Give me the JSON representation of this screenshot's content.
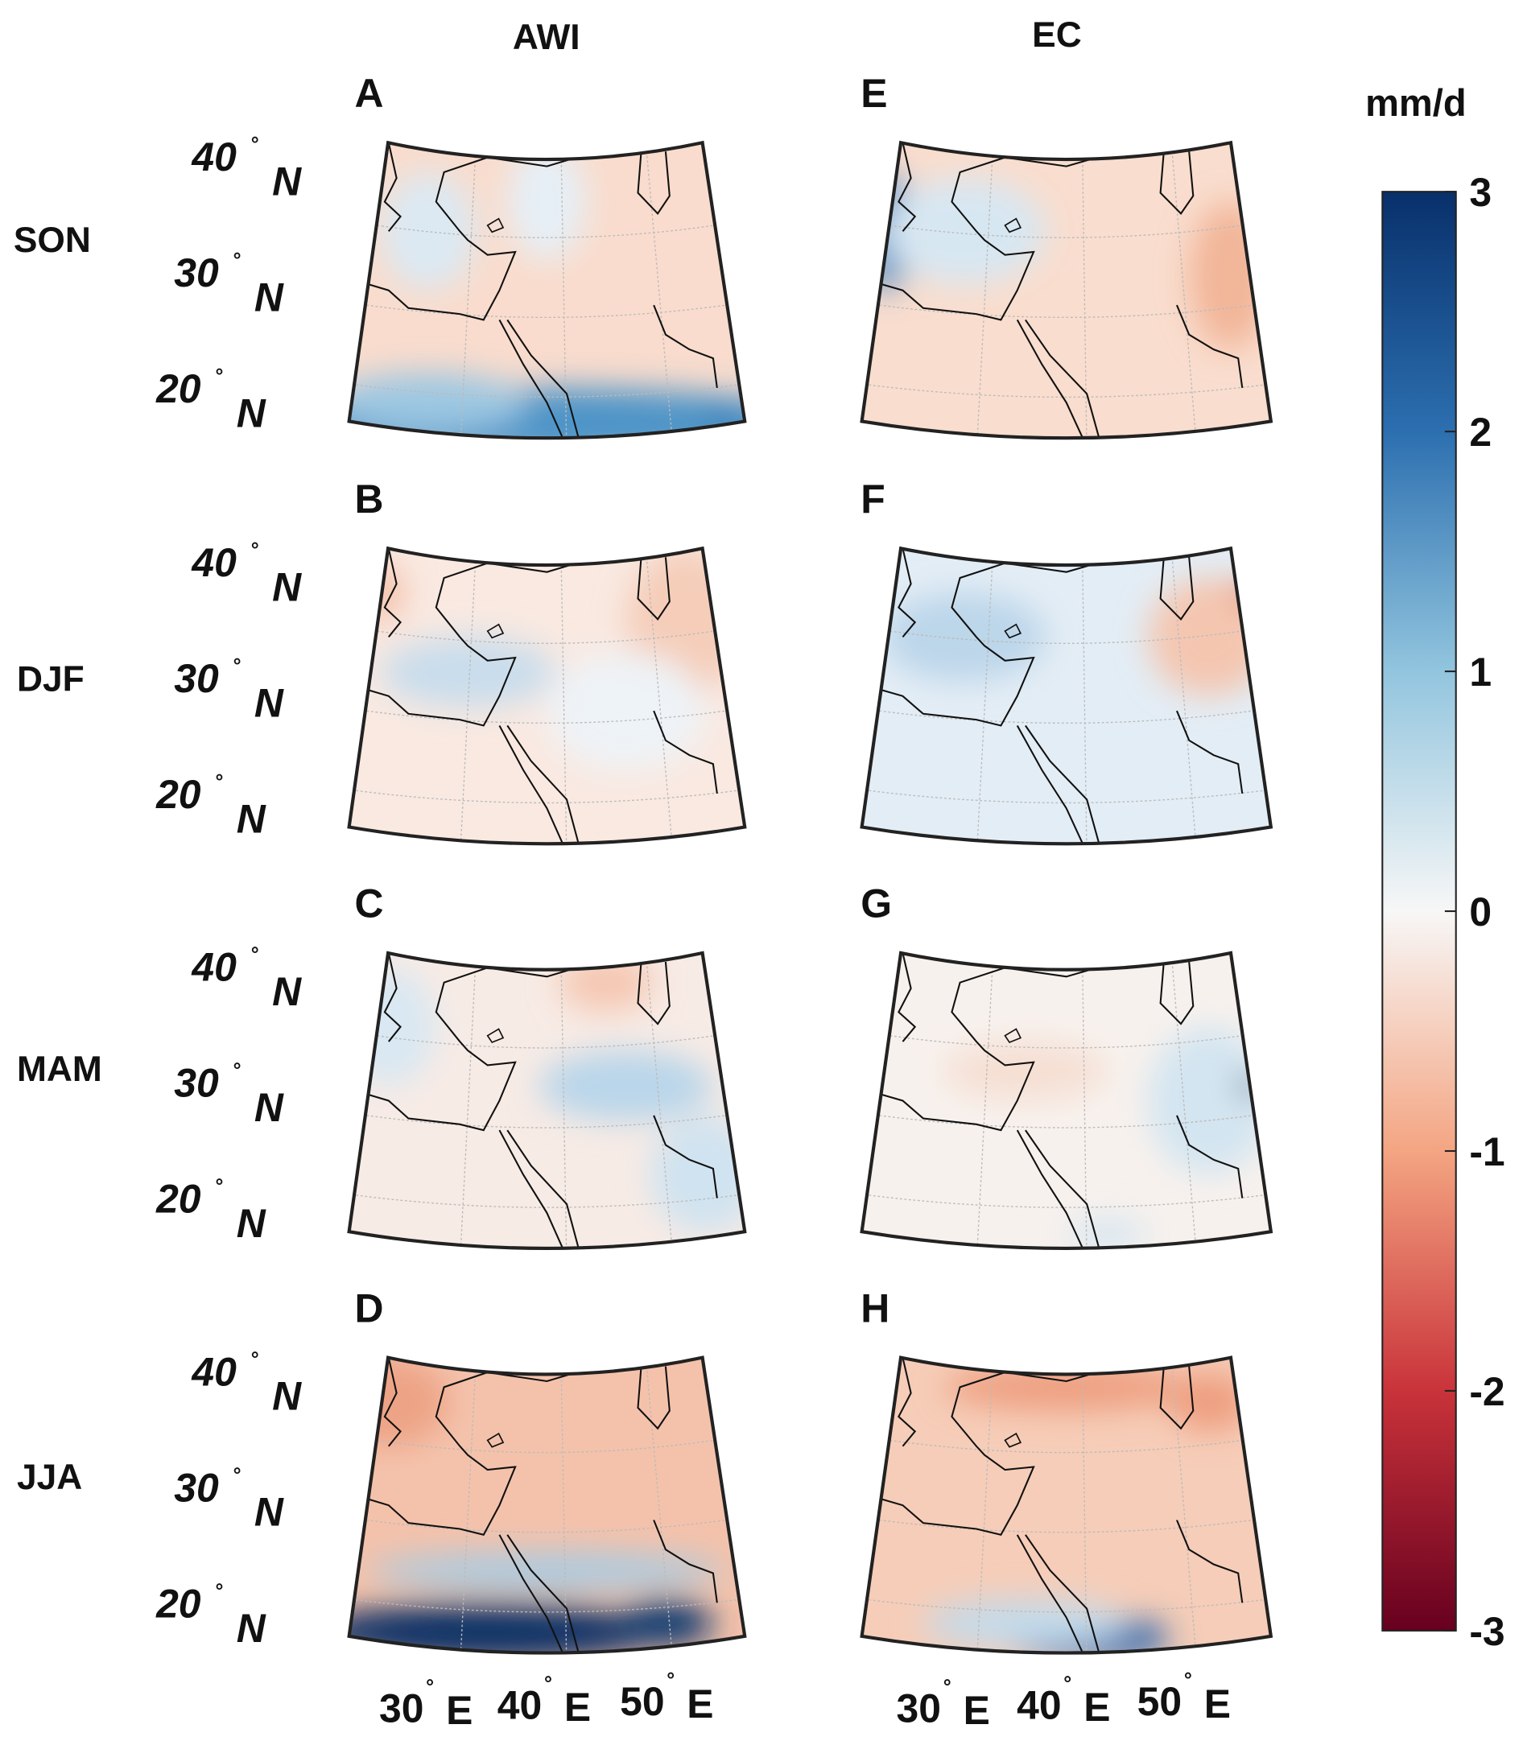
{
  "chart_data": {
    "type": "heatmap",
    "column_titles": [
      "AWI",
      "EC"
    ],
    "row_labels": [
      "SON",
      "DJF",
      "MAM",
      "JJA"
    ],
    "panels": [
      {
        "letter": "A",
        "model": "AWI",
        "season": "SON"
      },
      {
        "letter": "B",
        "model": "AWI",
        "season": "DJF"
      },
      {
        "letter": "C",
        "model": "AWI",
        "season": "MAM"
      },
      {
        "letter": "D",
        "model": "AWI",
        "season": "JJA"
      },
      {
        "letter": "E",
        "model": "EC",
        "season": "SON"
      },
      {
        "letter": "F",
        "model": "EC",
        "season": "DJF"
      },
      {
        "letter": "G",
        "model": "EC",
        "season": "MAM"
      },
      {
        "letter": "H",
        "model": "EC",
        "season": "JJA"
      }
    ],
    "lat_ticks": [
      "40",
      "30",
      "20"
    ],
    "lat_suffix": "N",
    "lon_ticks": [
      "30",
      "40",
      "50"
    ],
    "lon_suffix": "E",
    "degree_symbol": "°",
    "colorbar": {
      "label": "mm/d",
      "range": [
        -3,
        3
      ],
      "ticks": [
        "3",
        "2",
        "1",
        "0",
        "-1",
        "-2",
        "-3"
      ],
      "colormap": "diverging red-white-blue (RdBu)",
      "colors": {
        "3": "#08306b",
        "2": "#2c6fb0",
        "1": "#92c5de",
        "0": "#f7f7f7",
        "-1": "#f4a582",
        "-2": "#c9333a",
        "-3": "#67001f"
      }
    }
  }
}
